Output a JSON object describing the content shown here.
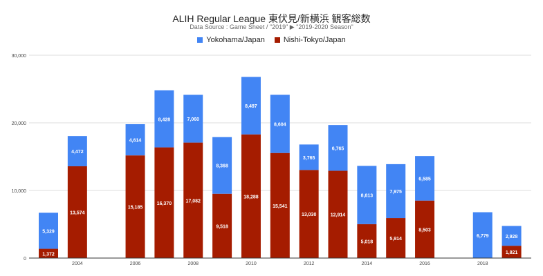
{
  "chart_data": {
    "type": "bar",
    "stacked": true,
    "title": "ALIH Regular League 東伏見/新横浜 観客総数",
    "subtitle": "Data Source : Game Sheet / \"2019\" ▶ \"2019-2020 Season\"",
    "xlabel": "",
    "ylabel": "",
    "ylim": [
      0,
      30000
    ],
    "yticks": [
      "0",
      "10,000",
      "20,000",
      "30,000"
    ],
    "ytick_values": [
      0,
      10000,
      20000,
      30000
    ],
    "xticks": [
      "2004",
      "2006",
      "2008",
      "2010",
      "2012",
      "2014",
      "2016",
      "2018"
    ],
    "xtick_values": [
      2004,
      2006,
      2008,
      2010,
      2012,
      2014,
      2016,
      2018
    ],
    "grid": true,
    "legend_position": "top",
    "x": [
      2003,
      2004,
      2006,
      2007,
      2008,
      2009,
      2010,
      2011,
      2012,
      2013,
      2014,
      2015,
      2016,
      2018,
      2019
    ],
    "series": [
      {
        "name": "Nishi-Tokyo/Japan",
        "color": "#a51c00",
        "values": [
          1372,
          13574,
          15185,
          16370,
          17082,
          9518,
          18288,
          15541,
          13030,
          12914,
          5018,
          5914,
          8503,
          0,
          1821
        ],
        "labels": [
          "1,372",
          "13,574",
          "15,185",
          "16,370",
          "17,082",
          "9,518",
          "18,288",
          "15,541",
          "13,030",
          "12,914",
          "5,018",
          "5,914",
          "8,503",
          "",
          "1,821"
        ]
      },
      {
        "name": "Yokohama/Japan",
        "color": "#4285f4",
        "values": [
          5329,
          4472,
          4614,
          8428,
          7060,
          8368,
          8497,
          8604,
          3765,
          6765,
          8613,
          7975,
          6585,
          6779,
          2928
        ],
        "labels": [
          "5,329",
          "4,472",
          "4,614",
          "8,428",
          "7,060",
          "8,368",
          "8,497",
          "8,604",
          "3,765",
          "6,765",
          "8,613",
          "7,975",
          "6,585",
          "6,779",
          "2,928"
        ]
      }
    ],
    "legend": [
      "Yokohama/Japan",
      "Nishi-Tokyo/Japan"
    ]
  }
}
